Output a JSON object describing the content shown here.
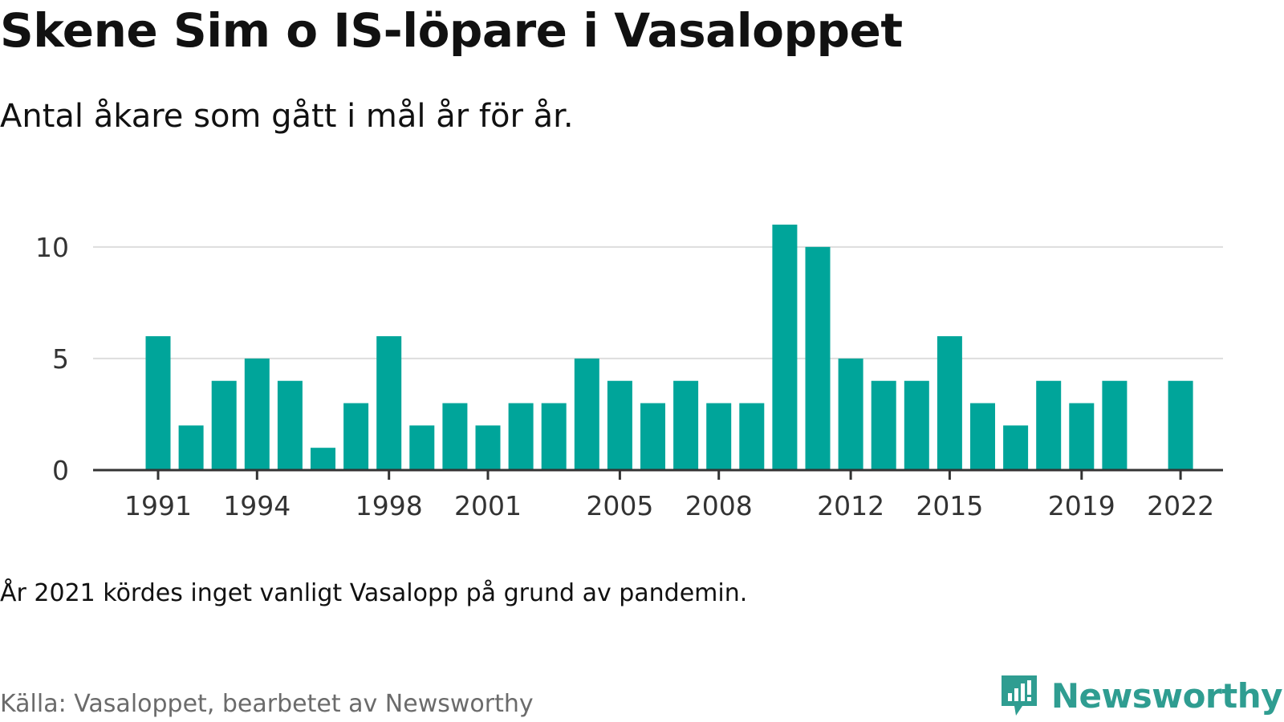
{
  "header": {
    "title": "Skene Sim o IS-löpare i Vasaloppet",
    "subtitle": "Antal åkare som gått i mål år för år."
  },
  "footer": {
    "note": "År 2021 kördes inget vanligt Vasalopp på grund av pandemin.",
    "source": "Källa: Vasaloppet, bearbetet av Newsworthy",
    "brand_name": "Newsworthy",
    "brand_icon": "newsworthy-logo-icon"
  },
  "colors": {
    "bar": "#00a59a",
    "grid": "#dddddd",
    "axis": "#333333",
    "brand": "#2f9d91"
  },
  "chart_data": {
    "type": "bar",
    "title": "Skene Sim o IS-löpare i Vasaloppet",
    "subtitle": "Antal åkare som gått i mål år för år.",
    "xlabel": "",
    "ylabel": "",
    "categories": [
      "1991",
      "1992",
      "1993",
      "1994",
      "1995",
      "1996",
      "1997",
      "1998",
      "1999",
      "2000",
      "2001",
      "2002",
      "2003",
      "2004",
      "2005",
      "2006",
      "2007",
      "2008",
      "2009",
      "2010",
      "2011",
      "2012",
      "2013",
      "2014",
      "2015",
      "2016",
      "2017",
      "2018",
      "2019",
      "2020",
      "2021",
      "2022"
    ],
    "values": [
      6,
      2,
      4,
      5,
      4,
      1,
      3,
      6,
      2,
      3,
      2,
      3,
      3,
      5,
      4,
      3,
      4,
      3,
      3,
      11,
      10,
      5,
      4,
      4,
      6,
      3,
      2,
      4,
      3,
      4,
      null,
      4
    ],
    "x_tick_labels": [
      "1991",
      "1994",
      "1998",
      "2001",
      "2005",
      "2008",
      "2012",
      "2015",
      "2019",
      "2022"
    ],
    "y_ticks": [
      0,
      5,
      10
    ],
    "ylim": [
      0,
      11
    ],
    "grid": true,
    "legend": "none"
  }
}
